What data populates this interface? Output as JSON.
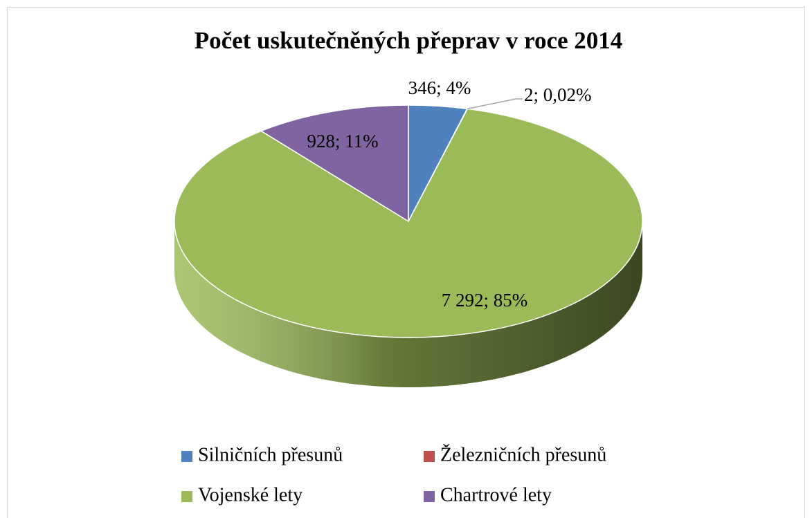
{
  "chart_data": {
    "type": "pie",
    "title": "Počet uskutečněných přeprav v roce 2014",
    "categories": [
      "Silničních přesunů",
      "Železničních přesunů",
      "Vojenské lety",
      "Chartrové lety"
    ],
    "values": [
      346,
      2,
      7292,
      928
    ],
    "value_labels": [
      "346; 4%",
      "2; 0,02%",
      "7 292; 85%",
      "928; 11%"
    ],
    "colors": [
      "#4f81bd",
      "#c0504d",
      "#9bbb59",
      "#8064a2"
    ],
    "legend": "bottom"
  }
}
